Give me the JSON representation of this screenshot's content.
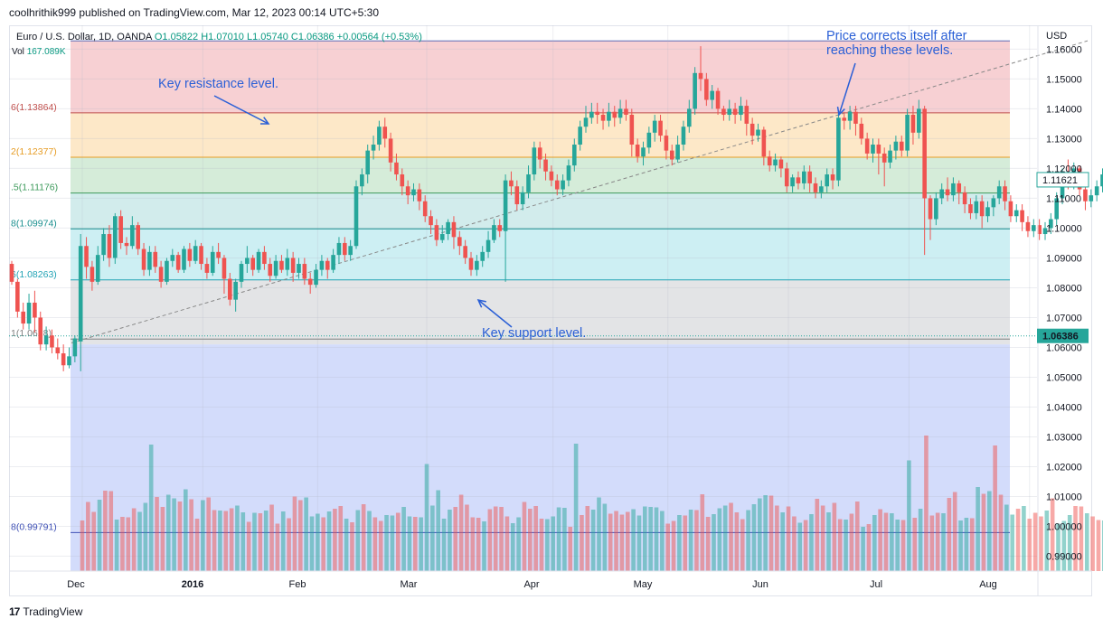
{
  "header": {
    "publisher": "coolhrithik999 published on TradingView.com, Mar 12, 2023 00:14 UTC+5:30"
  },
  "symbol": {
    "name": "Euro / U.S. Dollar, 1D, OANDA",
    "ohlc": "O1.05822 H1.07010 L1.05740 C1.06386 +0.00564 (+0.53%)",
    "volume_label": "Vol",
    "volume_value": "167.089K"
  },
  "currency": "USD",
  "footer": {
    "logo": "17",
    "brand": "TradingView"
  },
  "annotations": {
    "resistance": "Key resistance level.",
    "support": "Key support level.",
    "correction_line1": "Price corrects itself after",
    "correction_line2": "reaching these levels."
  },
  "colors": {
    "up": "#26a69a",
    "down": "#ef5350",
    "annotation": "#2a5fd6",
    "fib_red": "#f7d0d3",
    "fib_orange": "#fde8c8",
    "fib_green": "#d5ecd9",
    "fib_teal": "#d2ecec",
    "fib_cyan": "#cdeff3",
    "fib_grey": "#e3e4e6",
    "fib_blue": "#d3dcfb"
  },
  "chart_data": {
    "type": "candlestick",
    "title": "Euro / U.S. Dollar, 1D, OANDA",
    "ylim": [
      0.985,
      1.168
    ],
    "y_ticks": [
      "1.16000",
      "1.15000",
      "1.14000",
      "1.13000",
      "1.12000",
      "1.11000",
      "1.10000",
      "1.09000",
      "1.08000",
      "1.07000",
      "1.06000",
      "1.05000",
      "1.04000",
      "1.03000",
      "1.02000",
      "1.01000",
      "1.00000",
      "0.99000"
    ],
    "x_ticks": [
      {
        "label": "Dec",
        "day": 0
      },
      {
        "label": "2016",
        "day": 21
      },
      {
        "label": "Feb",
        "day": 41
      },
      {
        "label": "Mar",
        "day": 60
      },
      {
        "label": "Apr",
        "day": 82
      },
      {
        "label": "May",
        "day": 102
      },
      {
        "label": "Jun",
        "day": 123
      },
      {
        "label": "Jul",
        "day": 144
      },
      {
        "label": "Aug",
        "day": 165
      }
    ],
    "last_price": "1.06386",
    "current_label": "1.11621",
    "fib_levels": [
      {
        "label": "6(1.13864)",
        "value": 1.13864,
        "color": "#c0504d"
      },
      {
        "label": "2(1.12377)",
        "value": 1.12377,
        "color": "#e69c24"
      },
      {
        "label": ".5(1.11176)",
        "value": 1.11176,
        "color": "#3d9a5b"
      },
      {
        "label": "8(1.09974)",
        "value": 1.09974,
        "color": "#1b8f8f"
      },
      {
        "label": "6(1.08263)",
        "value": 1.08263,
        "color": "#22a3b5"
      },
      {
        "label": "1(1.0628)",
        "value": 1.0628,
        "color": "#808080"
      },
      {
        "label": "8(0.99791)",
        "value": 0.99791,
        "color": "#3f51b5"
      }
    ],
    "fib_top": 1.16277,
    "fib_bottom": 1.061,
    "trendline": {
      "from": [
        0,
        1.0615
      ],
      "to": [
        177,
        1.1628
      ]
    },
    "candles": [
      [
        1.088,
        1.082,
        1.089,
        1.081
      ],
      [
        1.082,
        1.072,
        1.083,
        1.07
      ],
      [
        1.072,
        1.068,
        1.075,
        1.066
      ],
      [
        1.068,
        1.075,
        1.078,
        1.066
      ],
      [
        1.075,
        1.07,
        1.079,
        1.065
      ],
      [
        1.07,
        1.061,
        1.072,
        1.059
      ],
      [
        1.061,
        1.064,
        1.067,
        1.059
      ],
      [
        1.064,
        1.06,
        1.066,
        1.058
      ],
      [
        1.06,
        1.058,
        1.063,
        1.056
      ],
      [
        1.058,
        1.054,
        1.061,
        1.052
      ],
      [
        1.054,
        1.057,
        1.06,
        1.053
      ],
      [
        1.057,
        1.063,
        1.064,
        1.055
      ],
      [
        1.062,
        1.094,
        1.098,
        1.052
      ],
      [
        1.094,
        1.087,
        1.097,
        1.083
      ],
      [
        1.087,
        1.082,
        1.089,
        1.079
      ],
      [
        1.082,
        1.091,
        1.094,
        1.081
      ],
      [
        1.091,
        1.098,
        1.1,
        1.089
      ],
      [
        1.098,
        1.09,
        1.101,
        1.087
      ],
      [
        1.09,
        1.104,
        1.105,
        1.088
      ],
      [
        1.104,
        1.095,
        1.106,
        1.093
      ],
      [
        1.095,
        1.094,
        1.097,
        1.091
      ],
      [
        1.094,
        1.101,
        1.104,
        1.093
      ],
      [
        1.101,
        1.093,
        1.102,
        1.091
      ],
      [
        1.093,
        1.086,
        1.095,
        1.084
      ],
      [
        1.086,
        1.092,
        1.094,
        1.084
      ],
      [
        1.092,
        1.087,
        1.094,
        1.085
      ],
      [
        1.087,
        1.082,
        1.089,
        1.08
      ],
      [
        1.082,
        1.089,
        1.09,
        1.081
      ],
      [
        1.089,
        1.091,
        1.093,
        1.087
      ],
      [
        1.091,
        1.086,
        1.092,
        1.085
      ],
      [
        1.086,
        1.093,
        1.094,
        1.085
      ],
      [
        1.093,
        1.089,
        1.095,
        1.087
      ],
      [
        1.089,
        1.094,
        1.096,
        1.088
      ],
      [
        1.094,
        1.088,
        1.095,
        1.086
      ],
      [
        1.088,
        1.085,
        1.09,
        1.083
      ],
      [
        1.085,
        1.092,
        1.094,
        1.084
      ],
      [
        1.092,
        1.09,
        1.095,
        1.088
      ],
      [
        1.09,
        1.083,
        1.091,
        1.078
      ],
      [
        1.083,
        1.076,
        1.085,
        1.074
      ],
      [
        1.076,
        1.082,
        1.083,
        1.072
      ],
      [
        1.082,
        1.088,
        1.089,
        1.08
      ],
      [
        1.088,
        1.09,
        1.094,
        1.085
      ],
      [
        1.09,
        1.086,
        1.091,
        1.084
      ],
      [
        1.086,
        1.092,
        1.093,
        1.085
      ],
      [
        1.092,
        1.088,
        1.094,
        1.086
      ],
      [
        1.088,
        1.084,
        1.09,
        1.082
      ],
      [
        1.084,
        1.089,
        1.091,
        1.083
      ],
      [
        1.089,
        1.086,
        1.091,
        1.085
      ],
      [
        1.086,
        1.09,
        1.093,
        1.084
      ],
      [
        1.09,
        1.085,
        1.092,
        1.082
      ],
      [
        1.085,
        1.088,
        1.09,
        1.083
      ],
      [
        1.088,
        1.083,
        1.09,
        1.081
      ],
      [
        1.083,
        1.081,
        1.085,
        1.078
      ],
      [
        1.081,
        1.086,
        1.088,
        1.08
      ],
      [
        1.086,
        1.089,
        1.091,
        1.084
      ],
      [
        1.089,
        1.086,
        1.09,
        1.083
      ],
      [
        1.086,
        1.091,
        1.093,
        1.085
      ],
      [
        1.091,
        1.095,
        1.097,
        1.088
      ],
      [
        1.095,
        1.091,
        1.097,
        1.089
      ],
      [
        1.091,
        1.094,
        1.096,
        1.089
      ],
      [
        1.094,
        1.114,
        1.116,
        1.093
      ],
      [
        1.114,
        1.118,
        1.12,
        1.111
      ],
      [
        1.118,
        1.126,
        1.128,
        1.115
      ],
      [
        1.126,
        1.128,
        1.131,
        1.123
      ],
      [
        1.128,
        1.134,
        1.136,
        1.126
      ],
      [
        1.134,
        1.13,
        1.137,
        1.127
      ],
      [
        1.13,
        1.122,
        1.132,
        1.119
      ],
      [
        1.122,
        1.118,
        1.125,
        1.116
      ],
      [
        1.118,
        1.114,
        1.12,
        1.111
      ],
      [
        1.114,
        1.111,
        1.116,
        1.108
      ],
      [
        1.111,
        1.113,
        1.115,
        1.109
      ],
      [
        1.113,
        1.109,
        1.115,
        1.106
      ],
      [
        1.109,
        1.104,
        1.111,
        1.102
      ],
      [
        1.104,
        1.101,
        1.106,
        1.098
      ],
      [
        1.101,
        1.096,
        1.103,
        1.094
      ],
      [
        1.096,
        1.098,
        1.101,
        1.095
      ],
      [
        1.098,
        1.102,
        1.103,
        1.096
      ],
      [
        1.102,
        1.097,
        1.104,
        1.093
      ],
      [
        1.097,
        1.094,
        1.099,
        1.091
      ],
      [
        1.094,
        1.09,
        1.096,
        1.088
      ],
      [
        1.09,
        1.086,
        1.092,
        1.084
      ],
      [
        1.086,
        1.089,
        1.091,
        1.084
      ],
      [
        1.089,
        1.092,
        1.094,
        1.087
      ],
      [
        1.092,
        1.096,
        1.099,
        1.09
      ],
      [
        1.096,
        1.101,
        1.103,
        1.095
      ],
      [
        1.101,
        1.099,
        1.103,
        1.097
      ],
      [
        1.099,
        1.116,
        1.118,
        1.082
      ],
      [
        1.116,
        1.114,
        1.119,
        1.111
      ],
      [
        1.114,
        1.108,
        1.116,
        1.106
      ],
      [
        1.108,
        1.112,
        1.114,
        1.106
      ],
      [
        1.112,
        1.118,
        1.121,
        1.11
      ],
      [
        1.118,
        1.127,
        1.129,
        1.116
      ],
      [
        1.127,
        1.123,
        1.129,
        1.12
      ],
      [
        1.123,
        1.119,
        1.125,
        1.116
      ],
      [
        1.119,
        1.116,
        1.121,
        1.114
      ],
      [
        1.116,
        1.113,
        1.118,
        1.111
      ],
      [
        1.113,
        1.116,
        1.118,
        1.111
      ],
      [
        1.116,
        1.121,
        1.123,
        1.114
      ],
      [
        1.121,
        1.128,
        1.13,
        1.119
      ],
      [
        1.128,
        1.134,
        1.136,
        1.126
      ],
      [
        1.134,
        1.137,
        1.141,
        1.132
      ],
      [
        1.137,
        1.139,
        1.142,
        1.135
      ],
      [
        1.139,
        1.138,
        1.142,
        1.135
      ],
      [
        1.138,
        1.136,
        1.14,
        1.133
      ],
      [
        1.136,
        1.139,
        1.142,
        1.134
      ],
      [
        1.139,
        1.137,
        1.141,
        1.134
      ],
      [
        1.137,
        1.14,
        1.143,
        1.135
      ],
      [
        1.14,
        1.138,
        1.143,
        1.136
      ],
      [
        1.138,
        1.128,
        1.14,
        1.124
      ],
      [
        1.128,
        1.124,
        1.13,
        1.122
      ],
      [
        1.124,
        1.127,
        1.129,
        1.121
      ],
      [
        1.127,
        1.132,
        1.134,
        1.125
      ],
      [
        1.132,
        1.136,
        1.138,
        1.129
      ],
      [
        1.136,
        1.131,
        1.138,
        1.129
      ],
      [
        1.131,
        1.126,
        1.133,
        1.123
      ],
      [
        1.126,
        1.123,
        1.128,
        1.121
      ],
      [
        1.123,
        1.128,
        1.131,
        1.122
      ],
      [
        1.128,
        1.134,
        1.136,
        1.126
      ],
      [
        1.134,
        1.14,
        1.143,
        1.132
      ],
      [
        1.14,
        1.152,
        1.154,
        1.138
      ],
      [
        1.152,
        1.15,
        1.161,
        1.146
      ],
      [
        1.15,
        1.143,
        1.152,
        1.141
      ],
      [
        1.143,
        1.146,
        1.148,
        1.14
      ],
      [
        1.146,
        1.14,
        1.147,
        1.138
      ],
      [
        1.14,
        1.138,
        1.141,
        1.136
      ],
      [
        1.138,
        1.14,
        1.143,
        1.136
      ],
      [
        1.14,
        1.138,
        1.142,
        1.135
      ],
      [
        1.138,
        1.141,
        1.144,
        1.136
      ],
      [
        1.141,
        1.135,
        1.143,
        1.131
      ],
      [
        1.135,
        1.131,
        1.137,
        1.128
      ],
      [
        1.131,
        1.133,
        1.135,
        1.129
      ],
      [
        1.133,
        1.124,
        1.134,
        1.121
      ],
      [
        1.124,
        1.121,
        1.126,
        1.119
      ],
      [
        1.121,
        1.123,
        1.125,
        1.119
      ],
      [
        1.123,
        1.12,
        1.124,
        1.117
      ],
      [
        1.12,
        1.114,
        1.122,
        1.112
      ],
      [
        1.114,
        1.117,
        1.118,
        1.112
      ],
      [
        1.117,
        1.115,
        1.119,
        1.113
      ],
      [
        1.115,
        1.119,
        1.121,
        1.113
      ],
      [
        1.119,
        1.115,
        1.121,
        1.112
      ],
      [
        1.115,
        1.112,
        1.117,
        1.11
      ],
      [
        1.112,
        1.114,
        1.116,
        1.11
      ],
      [
        1.114,
        1.118,
        1.12,
        1.112
      ],
      [
        1.118,
        1.116,
        1.12,
        1.113
      ],
      [
        1.116,
        1.137,
        1.139,
        1.114
      ],
      [
        1.137,
        1.136,
        1.139,
        1.133
      ],
      [
        1.136,
        1.139,
        1.141,
        1.133
      ],
      [
        1.139,
        1.135,
        1.141,
        1.131
      ],
      [
        1.135,
        1.13,
        1.137,
        1.128
      ],
      [
        1.13,
        1.125,
        1.132,
        1.123
      ],
      [
        1.125,
        1.128,
        1.13,
        1.122
      ],
      [
        1.128,
        1.125,
        1.13,
        1.118
      ],
      [
        1.125,
        1.122,
        1.127,
        1.114
      ],
      [
        1.122,
        1.126,
        1.128,
        1.12
      ],
      [
        1.126,
        1.129,
        1.131,
        1.123
      ],
      [
        1.129,
        1.126,
        1.131,
        1.124
      ],
      [
        1.126,
        1.138,
        1.14,
        1.124
      ],
      [
        1.138,
        1.132,
        1.141,
        1.128
      ],
      [
        1.132,
        1.14,
        1.143,
        1.13
      ],
      [
        1.14,
        1.11,
        1.141,
        1.091
      ],
      [
        1.11,
        1.103,
        1.111,
        1.096
      ],
      [
        1.103,
        1.11,
        1.112,
        1.101
      ],
      [
        1.11,
        1.113,
        1.115,
        1.108
      ],
      [
        1.113,
        1.111,
        1.117,
        1.109
      ],
      [
        1.111,
        1.115,
        1.117,
        1.109
      ],
      [
        1.115,
        1.112,
        1.116,
        1.108
      ],
      [
        1.112,
        1.108,
        1.114,
        1.105
      ],
      [
        1.108,
        1.105,
        1.11,
        1.103
      ],
      [
        1.105,
        1.109,
        1.111,
        1.103
      ],
      [
        1.109,
        1.104,
        1.111,
        1.1
      ],
      [
        1.104,
        1.107,
        1.109,
        1.102
      ],
      [
        1.107,
        1.11,
        1.111,
        1.104
      ],
      [
        1.11,
        1.114,
        1.116,
        1.108
      ],
      [
        1.114,
        1.109,
        1.116,
        1.106
      ],
      [
        1.109,
        1.104,
        1.111,
        1.102
      ],
      [
        1.104,
        1.106,
        1.108,
        1.102
      ],
      [
        1.106,
        1.102,
        1.108,
        1.099
      ],
      [
        1.102,
        1.099,
        1.104,
        1.097
      ],
      [
        1.099,
        1.101,
        1.103,
        1.097
      ],
      [
        1.101,
        1.098,
        1.103,
        1.096
      ],
      [
        1.098,
        1.1,
        1.102,
        1.096
      ],
      [
        1.1,
        1.103,
        1.105,
        1.098
      ],
      [
        1.103,
        1.11,
        1.112,
        1.101
      ],
      [
        1.11,
        1.118,
        1.12,
        1.108
      ],
      [
        1.118,
        1.115,
        1.123,
        1.113
      ],
      [
        1.115,
        1.12,
        1.122,
        1.113
      ],
      [
        1.12,
        1.113,
        1.121,
        1.111
      ],
      [
        1.113,
        1.109,
        1.115,
        1.106
      ],
      [
        1.109,
        1.111,
        1.113,
        1.107
      ],
      [
        1.111,
        1.114,
        1.116,
        1.109
      ],
      [
        1.114,
        1.118,
        1.12,
        1.112
      ],
      [
        1.118,
        1.116,
        1.12,
        1.113
      ]
    ]
  }
}
